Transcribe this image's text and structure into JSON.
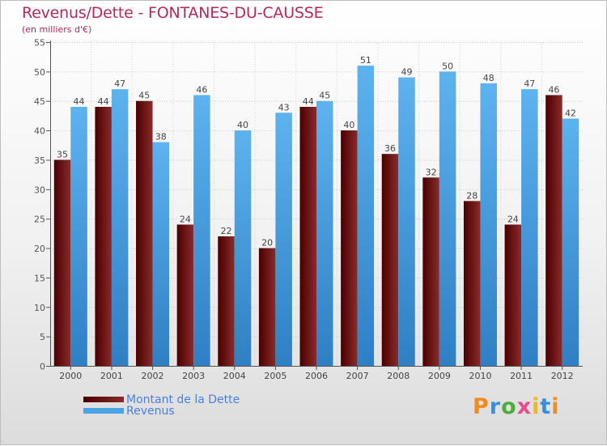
{
  "chart_data": {
    "type": "bar",
    "title": "Revenus/Dette - FONTANES-DU-CAUSSE",
    "subtitle": "(en milliers d'€)",
    "categories": [
      "2000",
      "2001",
      "2002",
      "2003",
      "2004",
      "2005",
      "2006",
      "2007",
      "2008",
      "2009",
      "2010",
      "2011",
      "2012"
    ],
    "series": [
      {
        "name": "Montant de la Dette",
        "values": [
          35,
          44,
          45,
          24,
          22,
          20,
          44,
          40,
          36,
          32,
          28,
          24,
          46
        ],
        "color": "#6b1414"
      },
      {
        "name": "Revenus",
        "values": [
          44,
          47,
          38,
          46,
          40,
          43,
          45,
          51,
          49,
          50,
          48,
          47,
          42
        ],
        "color": "#4aa3e5"
      }
    ],
    "ylim": [
      0,
      55
    ],
    "yticks": [
      0,
      5,
      10,
      15,
      20,
      25,
      30,
      35,
      40,
      45,
      50,
      55
    ],
    "xlabel": "",
    "ylabel": "",
    "grid": true,
    "legend_position": "bottom-left"
  },
  "colors": {
    "title": "#b5295a",
    "dette_dark": "#4a0000",
    "dette_light": "#8a2b2b",
    "revenus_dark": "#2f7fc4",
    "revenus_light": "#5db3ee",
    "legend_text": "#4a7fe0"
  },
  "logo": {
    "text": "Proxiti",
    "letter_colors": [
      "#f08c1e",
      "#3a8fd9",
      "#4cae3c",
      "#e94c8f",
      "#f0b81e",
      "#3a8fd9",
      "#f08c1e"
    ]
  }
}
